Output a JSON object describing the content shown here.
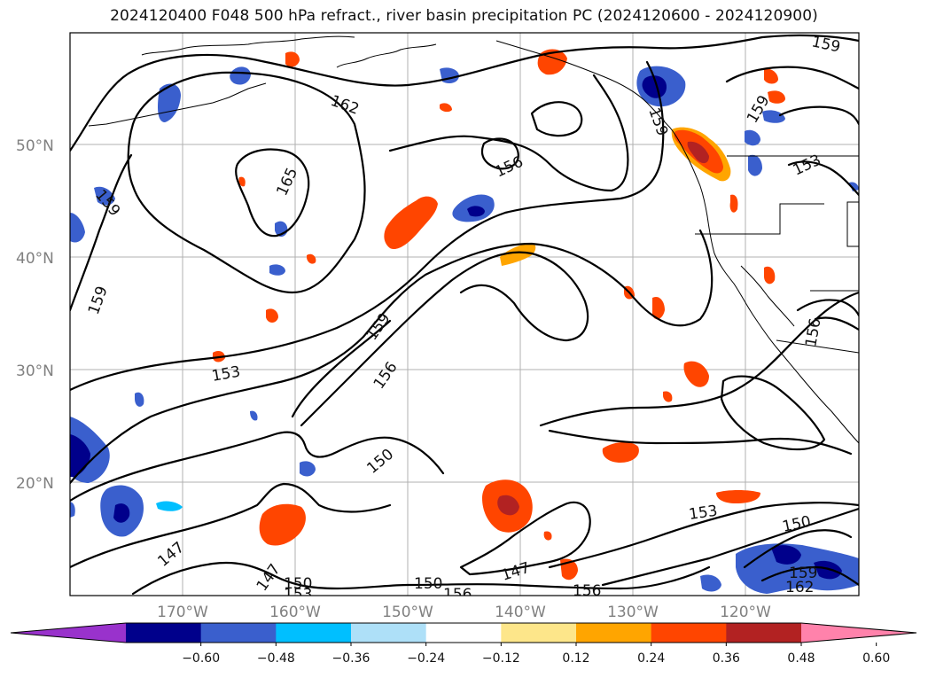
{
  "title": "2024120400 F048 500 hPa refract., river basin precipitation PC (2024120600 - 2024120900)",
  "lat_labels": [
    "50°N",
    "40°N",
    "30°N",
    "20°N"
  ],
  "lon_labels": [
    "170°W",
    "160°W",
    "150°W",
    "140°W",
    "130°W",
    "120°W"
  ],
  "contour_labels": [
    "159",
    "162",
    "165",
    "159",
    "156",
    "159",
    "153",
    "159",
    "156",
    "150",
    "147",
    "147",
    "150",
    "153",
    "147",
    "150",
    "156",
    "156",
    "153",
    "150",
    "159",
    "162",
    "159",
    "153",
    "156",
    "159"
  ],
  "colorbar": {
    "ticks": [
      "−0.60",
      "−0.48",
      "−0.36",
      "−0.24",
      "−0.12",
      "0.12",
      "0.24",
      "0.36",
      "0.48",
      "0.60"
    ],
    "colors": [
      "#9932cc",
      "#00008b",
      "#3a5fcd",
      "#00bfff",
      "#aee0f8",
      "#ffffff",
      "#fde68a",
      "#ffa500",
      "#ff4500",
      "#b22222",
      "#ff82ab"
    ]
  }
}
